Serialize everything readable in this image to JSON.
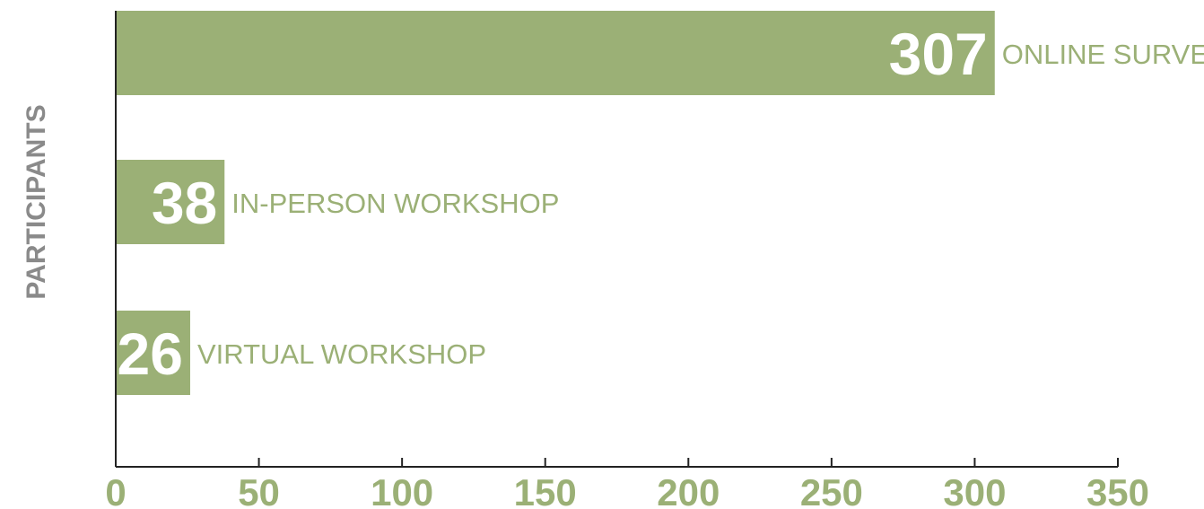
{
  "chart_data": {
    "type": "bar",
    "orientation": "horizontal",
    "categories": [
      "ONLINE SURVEY",
      "IN-PERSON WORKSHOP",
      "VIRTUAL WORKSHOP"
    ],
    "values": [
      307,
      38,
      26
    ],
    "data_labels": [
      "307",
      "38",
      "26"
    ],
    "ylabel": "PARTICIPANTS",
    "xlim": [
      0,
      350
    ],
    "x_ticks": [
      "0",
      "50",
      "100",
      "150",
      "200",
      "250",
      "300",
      "350"
    ],
    "grid": false,
    "legend": "none"
  },
  "colors": {
    "bar": "#9bb076",
    "category_text": "#9bb076",
    "value_text": "#ffffff",
    "tick_text": "#9bb076",
    "axis_title_text": "#8a8a8a",
    "axis_line": "#222222"
  }
}
